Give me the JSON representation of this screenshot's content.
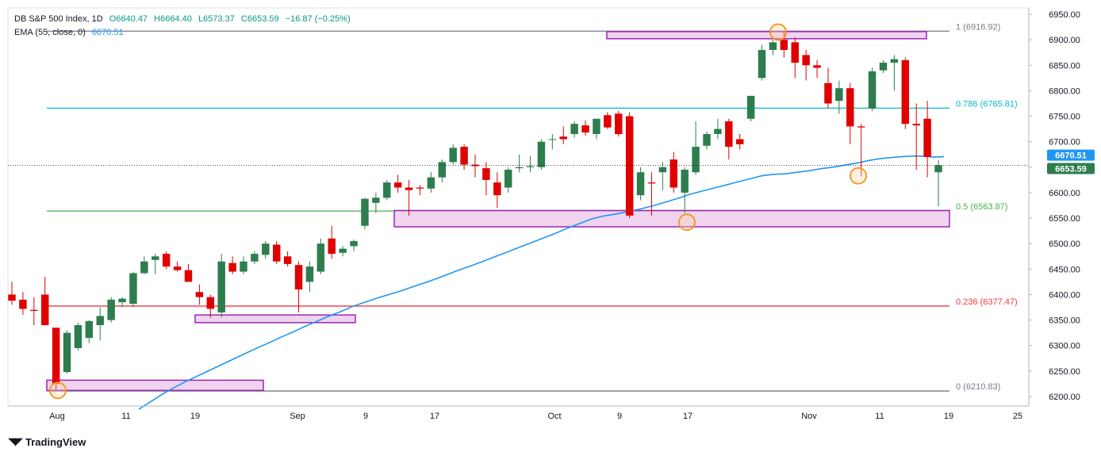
{
  "header": {
    "symbol": "DB S&P 500 Index, 1D",
    "open": "O6640.47",
    "high": "H6664.40",
    "low": "L6573.37",
    "close": "C6653.59",
    "change": "−16.87 (−0.25%)",
    "ema_label": "EMA (55, close, 0)",
    "ema_value": "6670.51"
  },
  "brand": {
    "name": "TradingView"
  },
  "price_badges": {
    "ema": "6670.51",
    "last": "6653.59"
  },
  "colors": {
    "up": "#2e7d4f",
    "down": "#e00000",
    "ema": "#2196f3",
    "box_fill": "#e9c4ea",
    "box_stroke": "#9c27b0",
    "circle": "#f7931a"
  },
  "chart_data": {
    "type": "candlestick",
    "y_ticks": [
      "6950.00",
      "6900.00",
      "6850.00",
      "6800.00",
      "6750.00",
      "6700.00",
      "6650.00",
      "6600.00",
      "6550.00",
      "6500.00",
      "6450.00",
      "6400.00",
      "6350.00",
      "6300.00",
      "6250.00",
      "6200.00"
    ],
    "ylim": [
      6185,
      6960
    ],
    "x_ticks": [
      "Aug",
      "11",
      "19",
      "Sep",
      "9",
      "17",
      "Oct",
      "9",
      "17",
      "Nov",
      "11",
      "19",
      "25"
    ],
    "fib_levels": [
      {
        "label": "1 (6916.92)",
        "value": 6916.92,
        "color": "#787b86"
      },
      {
        "label": "0.786 (6765.81)",
        "value": 6765.81,
        "color": "#00bcd4"
      },
      {
        "label": "0.5 (6563.87)",
        "value": 6563.87,
        "color": "#4caf50"
      },
      {
        "label": "0.236 (6377.47)",
        "value": 6377.47,
        "color": "#f23645"
      },
      {
        "label": "0 (6210.83)",
        "value": 6210.83,
        "color": "#787b86"
      }
    ],
    "candles": [
      {
        "o": 6400,
        "h": 6425,
        "l": 6380,
        "c": 6388
      },
      {
        "o": 6390,
        "h": 6405,
        "l": 6360,
        "c": 6372
      },
      {
        "o": 6370,
        "h": 6395,
        "l": 6340,
        "c": 6368
      },
      {
        "o": 6400,
        "h": 6435,
        "l": 6340,
        "c": 6340
      },
      {
        "o": 6335,
        "h": 6335,
        "l": 6212,
        "c": 6225
      },
      {
        "o": 6248,
        "h": 6330,
        "l": 6245,
        "c": 6325
      },
      {
        "o": 6295,
        "h": 6345,
        "l": 6290,
        "c": 6340
      },
      {
        "o": 6315,
        "h": 6350,
        "l": 6305,
        "c": 6348
      },
      {
        "o": 6340,
        "h": 6375,
        "l": 6310,
        "c": 6358
      },
      {
        "o": 6350,
        "h": 6395,
        "l": 6345,
        "c": 6390
      },
      {
        "o": 6385,
        "h": 6395,
        "l": 6375,
        "c": 6392
      },
      {
        "o": 6382,
        "h": 6445,
        "l": 6375,
        "c": 6442
      },
      {
        "o": 6442,
        "h": 6475,
        "l": 6440,
        "c": 6465
      },
      {
        "o": 6468,
        "h": 6480,
        "l": 6440,
        "c": 6475
      },
      {
        "o": 6480,
        "h": 6485,
        "l": 6450,
        "c": 6455
      },
      {
        "o": 6455,
        "h": 6465,
        "l": 6445,
        "c": 6448
      },
      {
        "o": 6448,
        "h": 6460,
        "l": 6425,
        "c": 6425
      },
      {
        "o": 6405,
        "h": 6420,
        "l": 6380,
        "c": 6395
      },
      {
        "o": 6395,
        "h": 6400,
        "l": 6355,
        "c": 6372
      },
      {
        "o": 6365,
        "h": 6480,
        "l": 6355,
        "c": 6465
      },
      {
        "o": 6462,
        "h": 6475,
        "l": 6440,
        "c": 6445
      },
      {
        "o": 6445,
        "h": 6475,
        "l": 6440,
        "c": 6465
      },
      {
        "o": 6465,
        "h": 6485,
        "l": 6460,
        "c": 6480
      },
      {
        "o": 6478,
        "h": 6505,
        "l": 6470,
        "c": 6500
      },
      {
        "o": 6498,
        "h": 6505,
        "l": 6460,
        "c": 6465
      },
      {
        "o": 6475,
        "h": 6485,
        "l": 6455,
        "c": 6460
      },
      {
        "o": 6458,
        "h": 6465,
        "l": 6365,
        "c": 6410
      },
      {
        "o": 6425,
        "h": 6465,
        "l": 6405,
        "c": 6455
      },
      {
        "o": 6445,
        "h": 6510,
        "l": 6440,
        "c": 6500
      },
      {
        "o": 6510,
        "h": 6535,
        "l": 6470,
        "c": 6480
      },
      {
        "o": 6482,
        "h": 6495,
        "l": 6475,
        "c": 6490
      },
      {
        "o": 6495,
        "h": 6508,
        "l": 6485,
        "c": 6505
      },
      {
        "o": 6535,
        "h": 6590,
        "l": 6528,
        "c": 6588
      },
      {
        "o": 6580,
        "h": 6600,
        "l": 6560,
        "c": 6590
      },
      {
        "o": 6590,
        "h": 6625,
        "l": 6585,
        "c": 6620
      },
      {
        "o": 6620,
        "h": 6635,
        "l": 6600,
        "c": 6610
      },
      {
        "o": 6610,
        "h": 6625,
        "l": 6555,
        "c": 6605
      },
      {
        "o": 6610,
        "h": 6615,
        "l": 6595,
        "c": 6608
      },
      {
        "o": 6608,
        "h": 6640,
        "l": 6600,
        "c": 6630
      },
      {
        "o": 6630,
        "h": 6665,
        "l": 6620,
        "c": 6660
      },
      {
        "o": 6660,
        "h": 6695,
        "l": 6655,
        "c": 6688
      },
      {
        "o": 6690,
        "h": 6695,
        "l": 6645,
        "c": 6655
      },
      {
        "o": 6655,
        "h": 6675,
        "l": 6630,
        "c": 6652
      },
      {
        "o": 6648,
        "h": 6660,
        "l": 6595,
        "c": 6625
      },
      {
        "o": 6620,
        "h": 6640,
        "l": 6570,
        "c": 6595
      },
      {
        "o": 6610,
        "h": 6650,
        "l": 6600,
        "c": 6645
      },
      {
        "o": 6648,
        "h": 6675,
        "l": 6640,
        "c": 6650
      },
      {
        "o": 6650,
        "h": 6672,
        "l": 6640,
        "c": 6652
      },
      {
        "o": 6650,
        "h": 6705,
        "l": 6645,
        "c": 6700
      },
      {
        "o": 6705,
        "h": 6715,
        "l": 6685,
        "c": 6705
      },
      {
        "o": 6710,
        "h": 6730,
        "l": 6695,
        "c": 6705
      },
      {
        "o": 6715,
        "h": 6740,
        "l": 6708,
        "c": 6735
      },
      {
        "o": 6732,
        "h": 6742,
        "l": 6712,
        "c": 6718
      },
      {
        "o": 6715,
        "h": 6740,
        "l": 6705,
        "c": 6745
      },
      {
        "o": 6752,
        "h": 6758,
        "l": 6725,
        "c": 6728
      },
      {
        "o": 6755,
        "h": 6760,
        "l": 6710,
        "c": 6715
      },
      {
        "o": 6750,
        "h": 6758,
        "l": 6550,
        "c": 6555
      },
      {
        "o": 6595,
        "h": 6650,
        "l": 6585,
        "c": 6640
      },
      {
        "o": 6620,
        "h": 6640,
        "l": 6555,
        "c": 6618
      },
      {
        "o": 6640,
        "h": 6660,
        "l": 6605,
        "c": 6650
      },
      {
        "o": 6665,
        "h": 6680,
        "l": 6600,
        "c": 6610
      },
      {
        "o": 6600,
        "h": 6650,
        "l": 6560,
        "c": 6645
      },
      {
        "o": 6640,
        "h": 6740,
        "l": 6635,
        "c": 6690
      },
      {
        "o": 6692,
        "h": 6720,
        "l": 6685,
        "c": 6715
      },
      {
        "o": 6715,
        "h": 6745,
        "l": 6705,
        "c": 6725
      },
      {
        "o": 6740,
        "h": 6745,
        "l": 6665,
        "c": 6690
      },
      {
        "o": 6705,
        "h": 6715,
        "l": 6685,
        "c": 6695
      },
      {
        "o": 6745,
        "h": 6785,
        "l": 6740,
        "c": 6790
      },
      {
        "o": 6825,
        "h": 6890,
        "l": 6820,
        "c": 6880
      },
      {
        "o": 6880,
        "h": 6900,
        "l": 6870,
        "c": 6895
      },
      {
        "o": 6900,
        "h": 6915,
        "l": 6865,
        "c": 6880
      },
      {
        "o": 6895,
        "h": 6905,
        "l": 6825,
        "c": 6855
      },
      {
        "o": 6870,
        "h": 6880,
        "l": 6820,
        "c": 6850
      },
      {
        "o": 6850,
        "h": 6860,
        "l": 6825,
        "c": 6845
      },
      {
        "o": 6815,
        "h": 6845,
        "l": 6765,
        "c": 6775
      },
      {
        "o": 6780,
        "h": 6820,
        "l": 6755,
        "c": 6805
      },
      {
        "o": 6805,
        "h": 6815,
        "l": 6695,
        "c": 6730
      },
      {
        "o": 6730,
        "h": 6735,
        "l": 6632,
        "c": 6728
      },
      {
        "o": 6765,
        "h": 6845,
        "l": 6760,
        "c": 6838
      },
      {
        "o": 6840,
        "h": 6860,
        "l": 6835,
        "c": 6855
      },
      {
        "o": 6855,
        "h": 6870,
        "l": 6800,
        "c": 6862
      },
      {
        "o": 6860,
        "h": 6865,
        "l": 6725,
        "c": 6735
      },
      {
        "o": 6735,
        "h": 6775,
        "l": 6645,
        "c": 6732
      },
      {
        "o": 6745,
        "h": 6780,
        "l": 6630,
        "c": 6670
      },
      {
        "o": 6640,
        "h": 6664,
        "l": 6573,
        "c": 6654
      }
    ],
    "ema": [
      6175,
      6190,
      6205,
      6218,
      6230,
      6241,
      6252,
      6263,
      6274,
      6285,
      6296,
      6306,
      6317,
      6327,
      6338,
      6348,
      6358,
      6367,
      6377,
      6385,
      6393,
      6400,
      6407,
      6415,
      6423,
      6431,
      6440,
      6449,
      6457,
      6466,
      6475,
      6484,
      6493,
      6502,
      6511,
      6520,
      6530,
      6539,
      6548,
      6554,
      6559,
      6564,
      6569,
      6575,
      6582,
      6589,
      6597,
      6603,
      6609,
      6615,
      6621,
      6627,
      6633,
      6636,
      6637,
      6640,
      6643,
      6647,
      6650,
      6654,
      6658,
      6663,
      6667,
      6669,
      6671,
      6672,
      6671,
      6670,
      6670,
      6670,
      6671,
      6670
    ],
    "ema_x": [
      175,
      190,
      205,
      220,
      235,
      250,
      265,
      280,
      295,
      310,
      325,
      340,
      355,
      370,
      385,
      400,
      415,
      430,
      445,
      460,
      475,
      490,
      505,
      520,
      535,
      550,
      565,
      580,
      595,
      610,
      625,
      640,
      655,
      670,
      685,
      700,
      715,
      730,
      745,
      760,
      780,
      795,
      810,
      825,
      840,
      855,
      870,
      885,
      900,
      915,
      930,
      945,
      960,
      975,
      990,
      1005,
      1020,
      1035,
      1050,
      1065,
      1080,
      1095,
      1110,
      1125,
      1140,
      1155,
      1170,
      1175,
      1180,
      1185,
      1190,
      1185
    ],
    "boxes": [
      {
        "x1": 765,
        "x2": 1168,
        "y_top": 6916,
        "y_bot": 6902
      },
      {
        "x1": 497,
        "x2": 1197,
        "y_top": 6565,
        "y_bot": 6533
      },
      {
        "x1": 246,
        "x2": 448,
        "y_top": 6360,
        "y_bot": 6345
      },
      {
        "x1": 59,
        "x2": 332,
        "y_top": 6232,
        "y_bot": 6212
      }
    ],
    "circles": [
      {
        "x": 981,
        "v": 6915
      },
      {
        "x": 866,
        "v": 6542
      },
      {
        "x": 1082,
        "v": 6633
      },
      {
        "x": 73,
        "v": 6212
      }
    ]
  }
}
